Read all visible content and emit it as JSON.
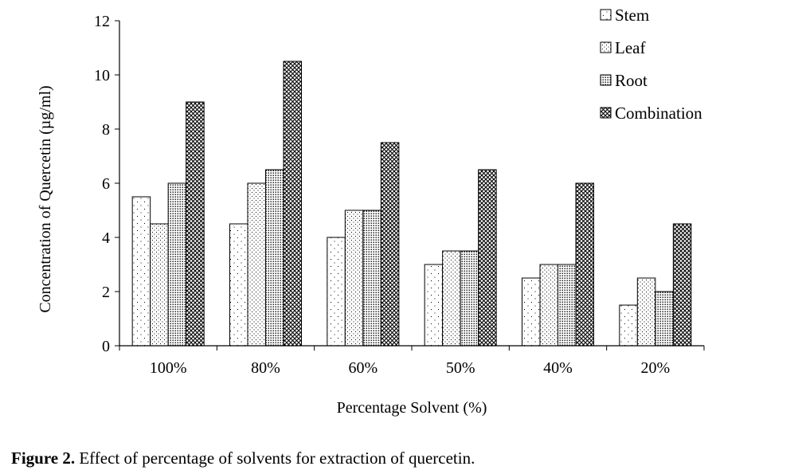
{
  "chart_data": {
    "type": "bar",
    "categories": [
      "100%",
      "80%",
      "60%",
      "50%",
      "40%",
      "20%"
    ],
    "series": [
      {
        "name": "Stem",
        "values": [
          5.5,
          4.5,
          4,
          3,
          2.5,
          1.5
        ]
      },
      {
        "name": "Leaf",
        "values": [
          4.5,
          6,
          5,
          3.5,
          3,
          2.5
        ]
      },
      {
        "name": "Root",
        "values": [
          6,
          6.5,
          5,
          3.5,
          3,
          2
        ]
      },
      {
        "name": "Combination",
        "values": [
          9,
          10.5,
          7.5,
          6.5,
          6,
          4.5
        ]
      }
    ],
    "xlabel": "Percentage Solvent (%)",
    "ylabel": "Concentration of Quercetin (µg/ml)",
    "ylim": [
      0,
      12
    ],
    "yticks": [
      0,
      2,
      4,
      6,
      8,
      10,
      12
    ],
    "grid": false,
    "legend": "top-right",
    "patterns": [
      "sparse-dots",
      "fine-dots",
      "dense-dots",
      "crosshatch"
    ]
  },
  "caption": {
    "label": "Figure 2.",
    "text": " Effect of percentage of solvents for extraction of quercetin."
  }
}
